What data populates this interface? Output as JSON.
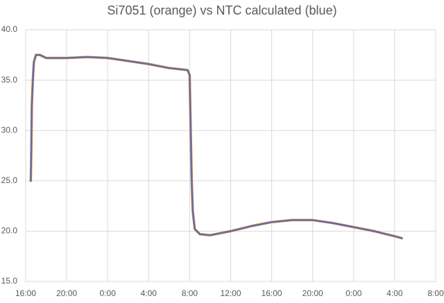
{
  "chart_data": {
    "type": "line",
    "title": "Si7051 (orange) vs NTC calculated (blue)",
    "x": [
      0.5,
      0.55,
      0.6,
      0.7,
      0.8,
      1.0,
      1.4,
      2,
      4,
      6,
      8,
      10,
      12,
      14,
      15.8,
      16.0,
      16.1,
      16.2,
      16.3,
      16.5,
      17,
      18,
      20,
      22,
      24,
      26,
      28,
      30,
      32,
      34,
      36,
      36.7
    ],
    "series": [
      {
        "color": "#ed7d31",
        "values": [
          25.0,
          28,
          32.5,
          35,
          36.8,
          37.5,
          37.5,
          37.2,
          37.2,
          37.3,
          37.2,
          36.9,
          36.6,
          36.2,
          36.0,
          35.5,
          30,
          25,
          22,
          20.2,
          19.7,
          19.6,
          20.0,
          20.5,
          20.9,
          21.1,
          21.1,
          20.8,
          20.4,
          20.0,
          19.5,
          19.3
        ]
      },
      {
        "color": "#4472c4",
        "values": [
          25.0,
          28,
          32.5,
          35,
          36.8,
          37.5,
          37.5,
          37.2,
          37.2,
          37.3,
          37.2,
          36.9,
          36.6,
          36.2,
          36.0,
          35.5,
          30,
          25,
          22,
          20.2,
          19.7,
          19.6,
          20.0,
          20.5,
          20.9,
          21.1,
          21.1,
          20.8,
          20.4,
          20.0,
          19.5,
          19.3
        ]
      }
    ],
    "xlim": [
      0,
      40
    ],
    "xticks": [
      {
        "value": 0,
        "label": "16:00"
      },
      {
        "value": 4,
        "label": "20:00"
      },
      {
        "value": 8,
        "label": "0:00"
      },
      {
        "value": 12,
        "label": "4:00"
      },
      {
        "value": 16,
        "label": "8:00"
      },
      {
        "value": 20,
        "label": "12:00"
      },
      {
        "value": 24,
        "label": "16:00"
      },
      {
        "value": 28,
        "label": "20:00"
      },
      {
        "value": 32,
        "label": "0:00"
      },
      {
        "value": 36,
        "label": "4:00"
      },
      {
        "value": 40,
        "label": "8:00"
      }
    ],
    "ylim": [
      15,
      40
    ],
    "yticks": [
      {
        "value": 15,
        "label": "15.0"
      },
      {
        "value": 20,
        "label": "20.0"
      },
      {
        "value": 25,
        "label": "25.0"
      },
      {
        "value": 30,
        "label": "30.0"
      },
      {
        "value": 35,
        "label": "35.0"
      },
      {
        "value": 40,
        "label": "40.0"
      }
    ],
    "grid": true
  }
}
